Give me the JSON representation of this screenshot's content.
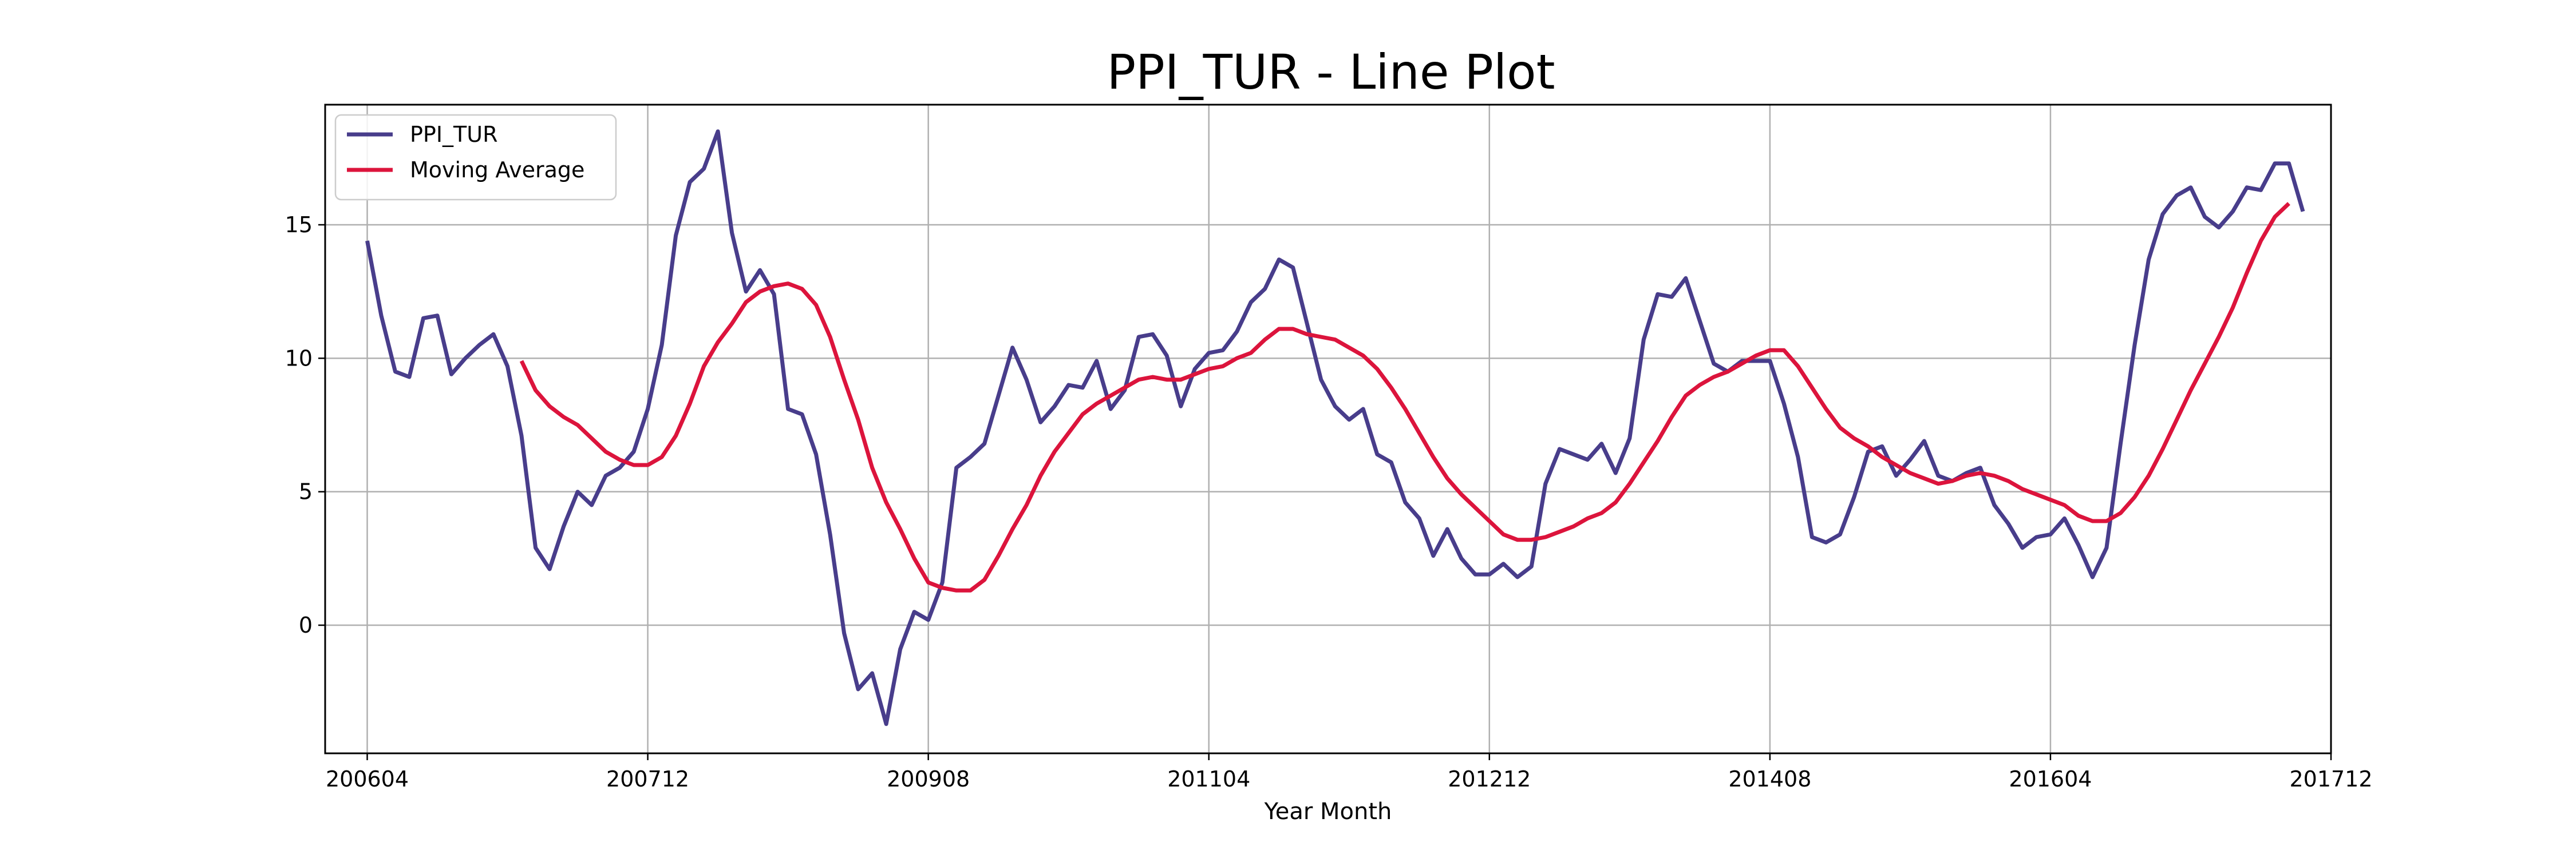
{
  "chart_data": {
    "type": "line",
    "title": "PPI_TUR - Line Plot",
    "xlabel": "Year Month",
    "ylabel": "",
    "grid": true,
    "legend_position": "top-left",
    "x_tick_labels": [
      "200604",
      "200712",
      "200908",
      "201104",
      "201212",
      "201408",
      "201604",
      "201712"
    ],
    "y_ticks": [
      0,
      5,
      10,
      15
    ],
    "ylim": [
      -4.8,
      19.5
    ],
    "x_range": [
      "2006-01",
      "2017-12"
    ],
    "x_start": "2006-04",
    "series": [
      {
        "name": "PPI_TUR",
        "color": "#483D8B",
        "values": [
          14.4,
          11.6,
          9.5,
          9.3,
          11.5,
          11.6,
          9.4,
          10.0,
          10.5,
          10.9,
          9.7,
          7.1,
          2.9,
          2.1,
          3.7,
          5.0,
          4.5,
          5.6,
          5.9,
          6.5,
          8.1,
          10.5,
          14.6,
          16.6,
          17.1,
          18.5,
          14.7,
          12.5,
          13.3,
          12.4,
          8.1,
          7.9,
          6.4,
          3.4,
          -0.3,
          -2.4,
          -1.8,
          -3.7,
          -0.9,
          0.5,
          0.2,
          1.6,
          5.9,
          6.3,
          6.8,
          8.6,
          10.4,
          9.2,
          7.6,
          8.2,
          9.0,
          8.9,
          9.9,
          8.1,
          8.8,
          10.8,
          10.9,
          10.1,
          8.2,
          9.6,
          10.2,
          10.3,
          11.0,
          12.1,
          12.6,
          13.7,
          13.4,
          11.3,
          9.2,
          8.2,
          7.7,
          8.1,
          6.4,
          6.1,
          4.6,
          4.0,
          2.6,
          3.6,
          2.5,
          1.9,
          1.9,
          2.3,
          1.8,
          2.2,
          5.3,
          6.6,
          6.4,
          6.2,
          6.8,
          5.7,
          7.0,
          10.7,
          12.4,
          12.3,
          13.0,
          11.4,
          9.8,
          9.5,
          9.9,
          9.9,
          9.9,
          8.3,
          6.3,
          3.3,
          3.1,
          3.4,
          4.8,
          6.5,
          6.7,
          5.6,
          6.2,
          6.9,
          5.6,
          5.4,
          5.7,
          5.9,
          4.5,
          3.8,
          2.9,
          3.3,
          3.4,
          4.0,
          3.0,
          1.8,
          2.9,
          6.8,
          10.5,
          13.7,
          15.4,
          16.1,
          16.4,
          15.3,
          14.9,
          15.5,
          16.4,
          16.3,
          17.3,
          17.3,
          15.5
        ]
      },
      {
        "name": "Moving Average",
        "color": "#DC143C",
        "values": [
          null,
          null,
          null,
          null,
          null,
          null,
          null,
          null,
          null,
          null,
          null,
          9.9,
          8.8,
          8.2,
          7.8,
          7.5,
          7.0,
          6.5,
          6.2,
          6.0,
          6.0,
          6.3,
          7.1,
          8.3,
          9.7,
          10.6,
          11.3,
          12.1,
          12.5,
          12.7,
          12.8,
          12.6,
          12.0,
          10.8,
          9.2,
          7.7,
          5.9,
          4.6,
          3.6,
          2.5,
          1.6,
          1.4,
          1.3,
          1.3,
          1.7,
          2.6,
          3.6,
          4.5,
          5.6,
          6.5,
          7.2,
          7.9,
          8.3,
          8.6,
          8.9,
          9.2,
          9.3,
          9.2,
          9.2,
          9.4,
          9.6,
          9.7,
          10.0,
          10.2,
          10.7,
          11.1,
          11.1,
          10.9,
          10.8,
          10.7,
          10.4,
          10.1,
          9.6,
          8.9,
          8.1,
          7.2,
          6.3,
          5.5,
          4.9,
          4.4,
          3.9,
          3.4,
          3.2,
          3.2,
          3.3,
          3.5,
          3.7,
          4.0,
          4.2,
          4.6,
          5.3,
          6.1,
          6.9,
          7.8,
          8.6,
          9.0,
          9.3,
          9.5,
          9.8,
          10.1,
          10.3,
          10.3,
          9.7,
          8.9,
          8.1,
          7.4,
          7.0,
          6.7,
          6.3,
          6.0,
          5.7,
          5.5,
          5.3,
          5.4,
          5.6,
          5.7,
          5.6,
          5.4,
          5.1,
          4.9,
          4.7,
          4.5,
          4.1,
          3.9,
          3.9,
          4.2,
          4.8,
          5.6,
          6.6,
          7.7,
          8.8,
          9.8,
          10.8,
          11.9,
          13.2,
          14.4,
          15.3,
          15.8
        ]
      }
    ]
  }
}
